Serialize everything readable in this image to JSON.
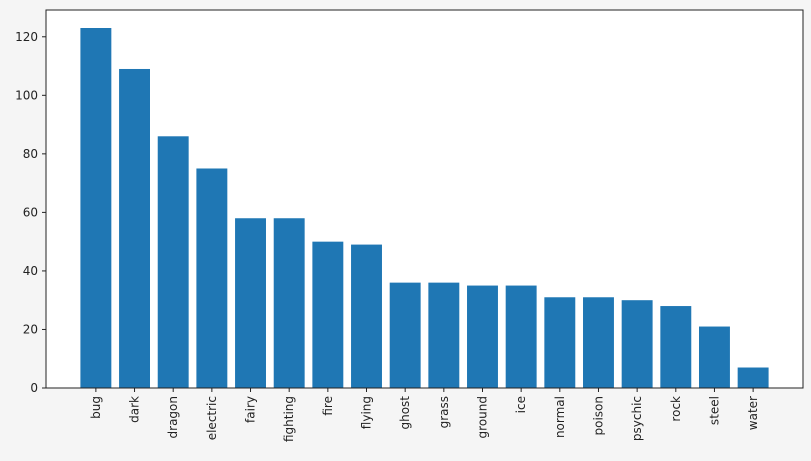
{
  "chart_data": {
    "type": "bar",
    "categories": [
      "bug",
      "dark",
      "dragon",
      "electric",
      "fairy",
      "fighting",
      "fire",
      "flying",
      "ghost",
      "grass",
      "ground",
      "ice",
      "normal",
      "poison",
      "psychic",
      "rock",
      "steel",
      "water"
    ],
    "values": [
      123,
      109,
      86,
      75,
      58,
      58,
      50,
      49,
      36,
      36,
      35,
      35,
      31,
      31,
      30,
      28,
      21,
      7
    ],
    "color": "#1f77b4",
    "ylim": [
      0,
      129.15
    ],
    "yticks": [
      0,
      20,
      40,
      60,
      80,
      100,
      120
    ],
    "grid": false
  }
}
